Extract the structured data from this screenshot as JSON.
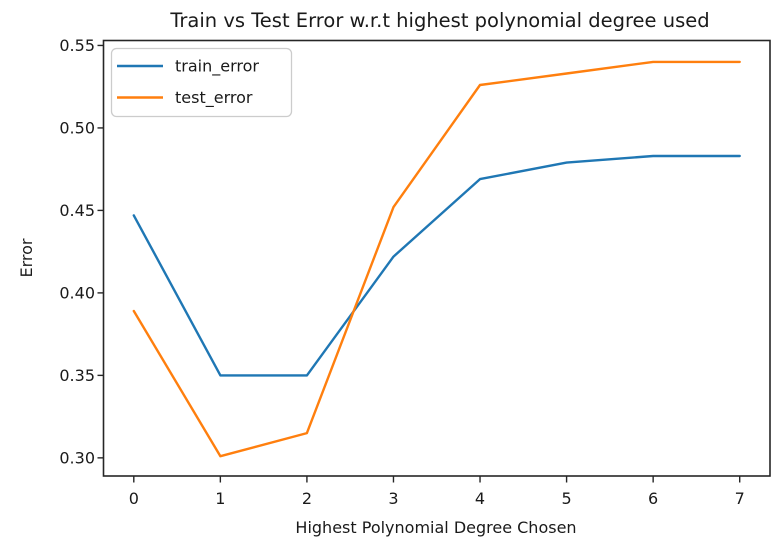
{
  "chart_data": {
    "type": "line",
    "title": "Train vs Test Error w.r.t highest polynomial degree used",
    "xlabel": "Highest Polynomial Degree Chosen",
    "ylabel": "Error",
    "x": [
      0,
      1,
      2,
      3,
      4,
      5,
      6,
      7
    ],
    "series": [
      {
        "name": "train_error",
        "color": "#1f77b4",
        "values": [
          0.447,
          0.35,
          0.35,
          0.422,
          0.469,
          0.479,
          0.483,
          0.483
        ]
      },
      {
        "name": "test_error",
        "color": "#ff7f0e",
        "values": [
          0.389,
          0.301,
          0.315,
          0.452,
          0.526,
          0.533,
          0.54,
          0.54
        ]
      }
    ],
    "xlim": [
      -0.35,
      7.35
    ],
    "ylim": [
      0.289,
      0.553
    ],
    "xticks": [
      0,
      1,
      2,
      3,
      4,
      5,
      6,
      7
    ],
    "xtick_labels": [
      "0",
      "1",
      "2",
      "3",
      "4",
      "5",
      "6",
      "7"
    ],
    "yticks": [
      0.3,
      0.35,
      0.4,
      0.45,
      0.5,
      0.55
    ],
    "ytick_labels": [
      "0.30",
      "0.35",
      "0.40",
      "0.45",
      "0.50",
      "0.55"
    ],
    "grid": false,
    "legend": {
      "position": "upper-left",
      "entries": [
        "train_error",
        "test_error"
      ]
    }
  },
  "colors": {
    "spine": "#262626",
    "tick": "#262626",
    "text": "#1a1a1a",
    "legend_border": "#cccccc",
    "background": "#ffffff"
  }
}
